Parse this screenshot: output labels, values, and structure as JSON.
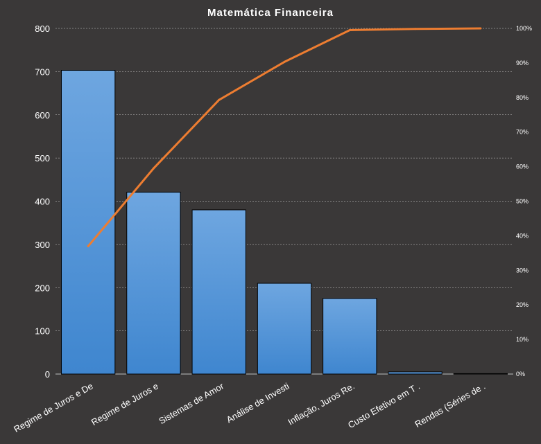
{
  "chart_data": {
    "type": "bar",
    "title": "Matemática Financeira",
    "categories": [
      "Regime de Juros e De",
      "Regime de Juros e",
      "Sistemas de Amor",
      "Análise de Investi",
      "Inflação, Juros Re.",
      "Custo Efetivo em T .",
      "Rendas (Séries de ."
    ],
    "series": [
      {
        "type": "bar",
        "values": [
          703,
          421,
          380,
          210,
          175,
          5,
          1
        ],
        "color": "#4f93d8"
      },
      {
        "type": "line",
        "axis": "secondary",
        "values": [
          0.37,
          0.595,
          0.793,
          0.903,
          0.995,
          0.9985,
          1.0
        ],
        "color": "#ed7d31"
      }
    ],
    "y_ticks": [
      "0",
      "100",
      "200",
      "300",
      "400",
      "500",
      "600",
      "700",
      "800"
    ],
    "ylim": [
      0,
      800
    ],
    "y2_ticks": [
      "0%",
      "10%",
      "20%",
      "30%",
      "40%",
      "50%",
      "60%",
      "70%",
      "80%",
      "90%",
      "100%"
    ],
    "y2lim": [
      0,
      1
    ],
    "grid": true,
    "legend": "none",
    "colors": {
      "background": "#3a3838",
      "gridline": "#ffffff",
      "bar": "#4f93d8",
      "line": "#ed7d31",
      "text": "#ffffff"
    }
  }
}
